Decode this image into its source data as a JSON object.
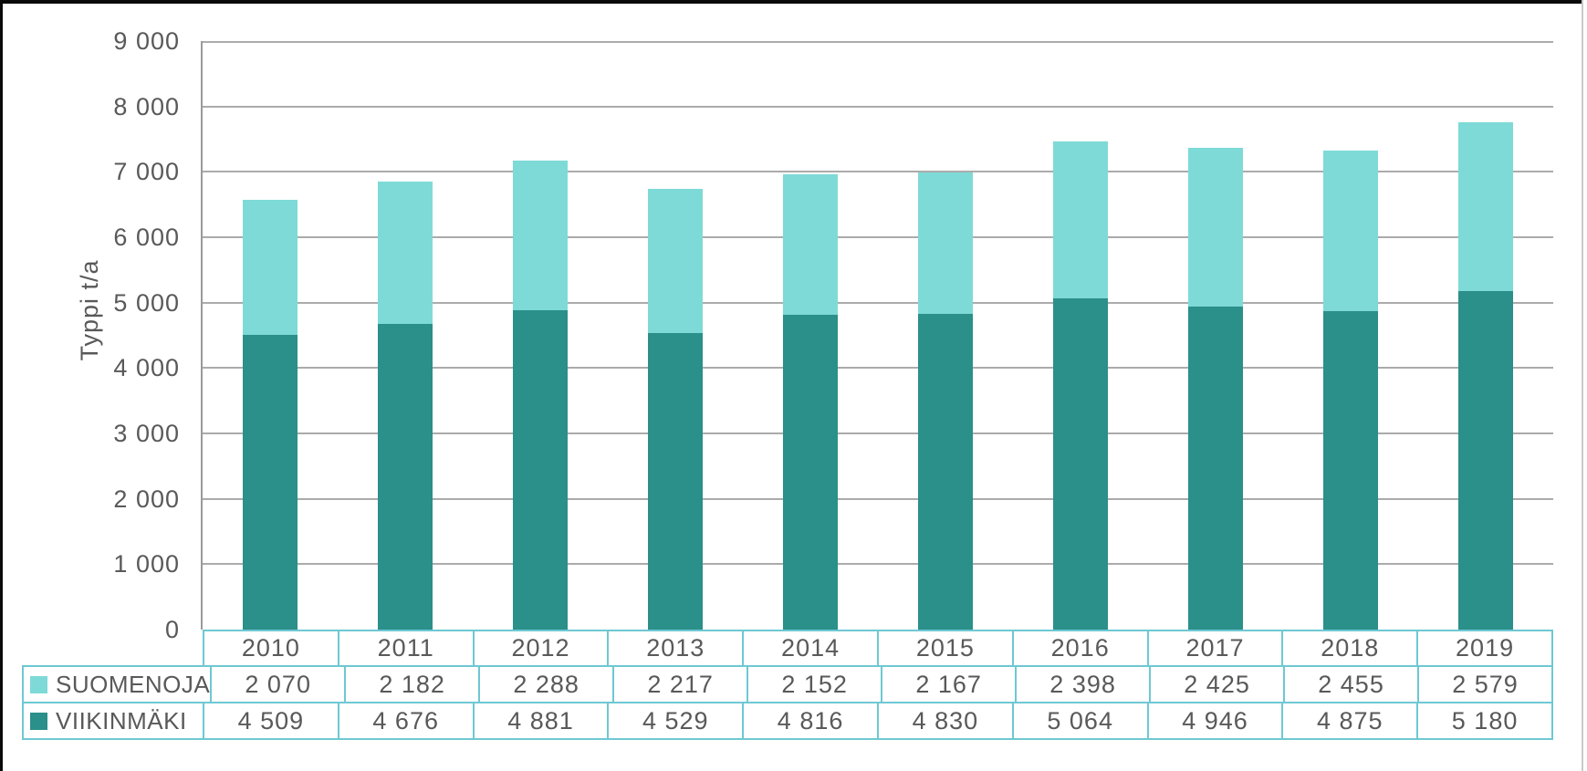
{
  "chart_data": {
    "type": "bar",
    "stacked": true,
    "title": "",
    "xlabel": "",
    "ylabel": "Typpi t/a",
    "ylim": [
      0,
      9000
    ],
    "ytick_step": 1000,
    "grid": true,
    "legend_position": "table-left",
    "categories": [
      "2010",
      "2011",
      "2012",
      "2013",
      "2014",
      "2015",
      "2016",
      "2017",
      "2018",
      "2019"
    ],
    "series": [
      {
        "name": "SUOMENOJA",
        "color": "#7edad7",
        "values": [
          2070,
          2182,
          2288,
          2217,
          2152,
          2167,
          2398,
          2425,
          2455,
          2579
        ],
        "values_formatted": [
          "2 070",
          "2 182",
          "2 288",
          "2 217",
          "2 152",
          "2 167",
          "2 398",
          "2 425",
          "2 455",
          "2 579"
        ]
      },
      {
        "name": "VIIKINMÄKI",
        "color": "#2b8f8a",
        "values": [
          4509,
          4676,
          4881,
          4529,
          4816,
          4830,
          5064,
          4946,
          4875,
          5180
        ],
        "values_formatted": [
          "4 509",
          "4 676",
          "4 881",
          "4 529",
          "4 816",
          "4 830",
          "5 064",
          "4 946",
          "4 875",
          "5 180"
        ]
      }
    ],
    "y_ticks": [
      {
        "value": 0,
        "label": "0"
      },
      {
        "value": 1000,
        "label": "1 000"
      },
      {
        "value": 2000,
        "label": "2 000"
      },
      {
        "value": 3000,
        "label": "3 000"
      },
      {
        "value": 4000,
        "label": "4 000"
      },
      {
        "value": 5000,
        "label": "5 000"
      },
      {
        "value": 6000,
        "label": "6 000"
      },
      {
        "value": 7000,
        "label": "7 000"
      },
      {
        "value": 8000,
        "label": "8 000"
      },
      {
        "value": 9000,
        "label": "9 000"
      }
    ]
  },
  "colors": {
    "suomenoja": "#7edad7",
    "viikinmaki": "#2b8f8a",
    "table_border": "#6ec8d2",
    "gridline": "#ababab",
    "axis_line": "#9a9a9a",
    "text": "#595959",
    "frame": "#0a0a0a",
    "background": "#ffffff"
  }
}
